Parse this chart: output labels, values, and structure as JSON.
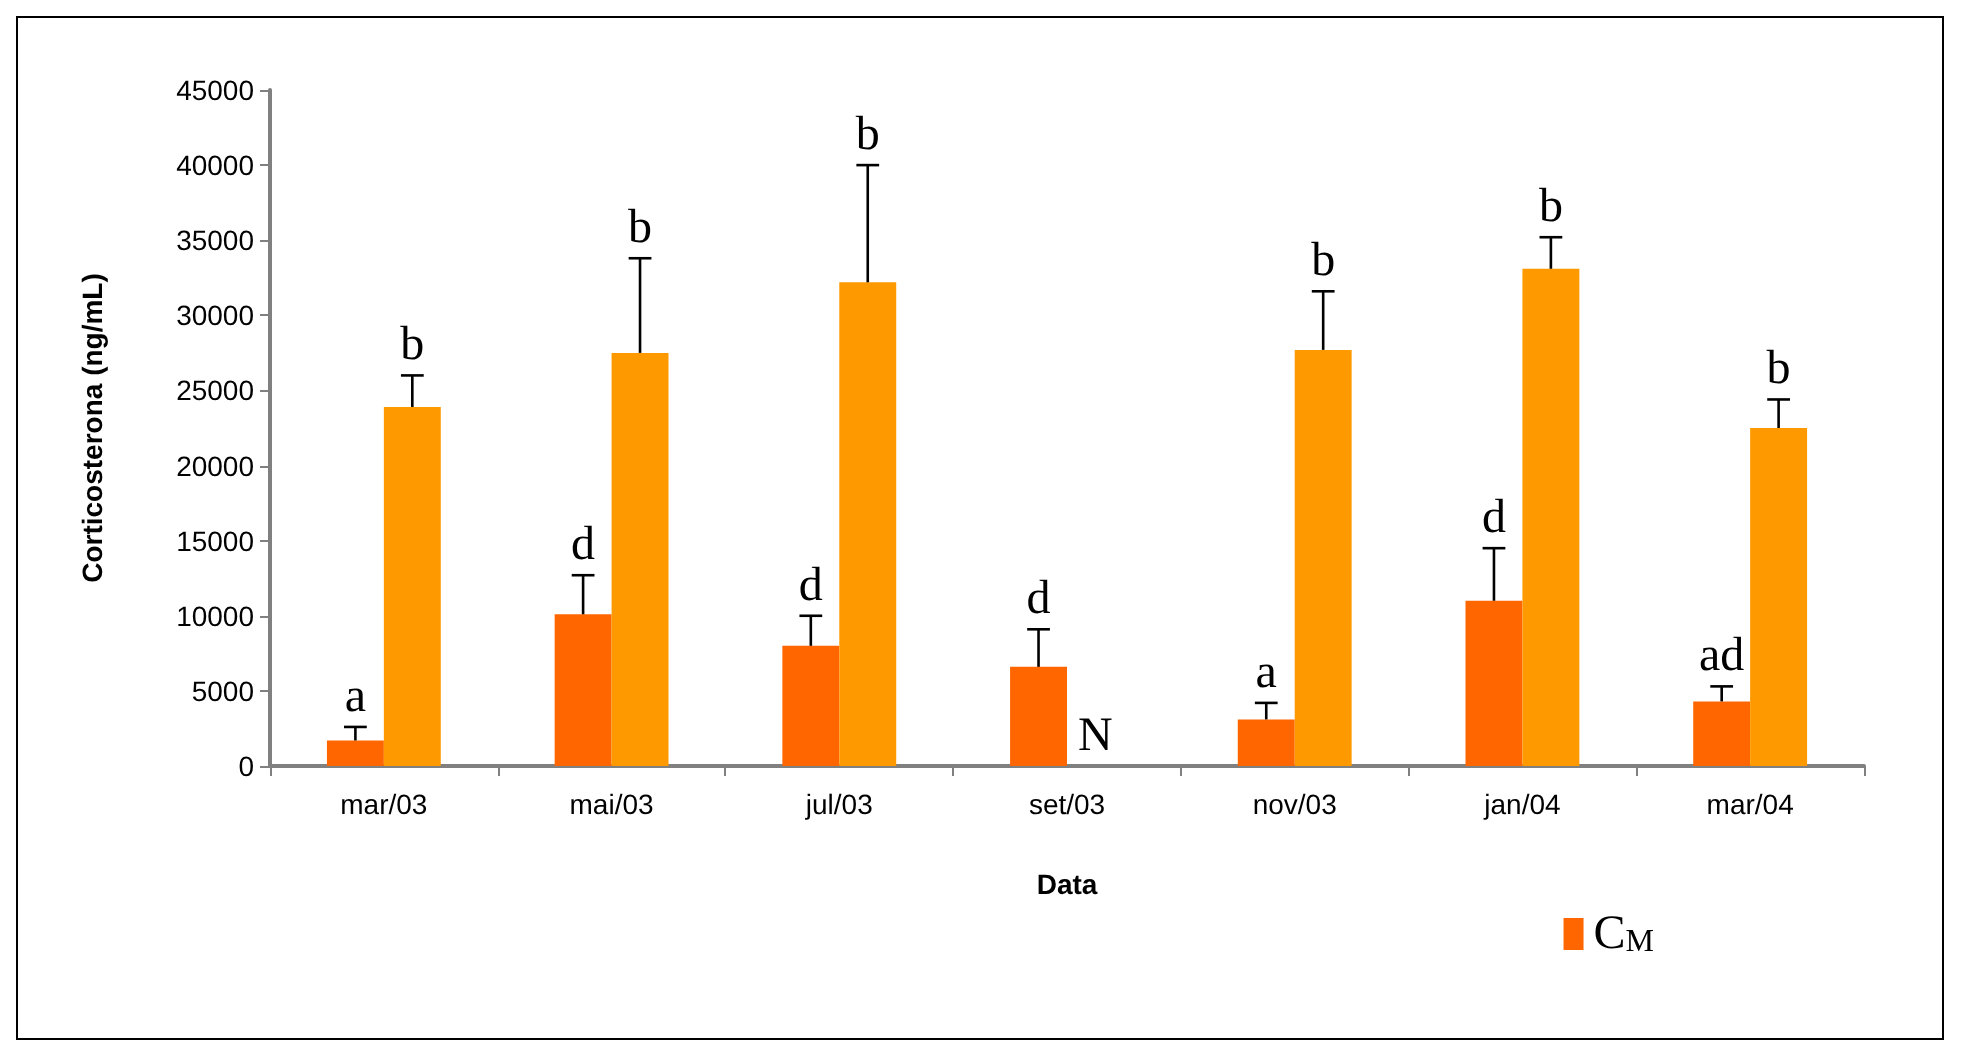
{
  "chart_data": {
    "type": "bar",
    "xlabel": "Data",
    "ylabel": "Corticosterona (ng/mL)",
    "categories": [
      "mar/03",
      "mai/03",
      "jul/03",
      "set/03",
      "nov/03",
      "jan/04",
      "mar/04"
    ],
    "series": [
      {
        "name": "C$_{M}$",
        "color": "#ff6600",
        "values": [
          1700,
          10100,
          8000,
          6600,
          3100,
          11000,
          4300
        ],
        "errors": [
          [
            1700,
            2600
          ],
          [
            10100,
            12700
          ],
          [
            8000,
            10000
          ],
          [
            6600,
            9100
          ],
          [
            3100,
            4200
          ],
          [
            11000,
            14500
          ],
          [
            4300,
            5300
          ]
        ]
      },
      {
        "color": "#ff9900",
        "values": [
          23900,
          27500,
          32200,
          null,
          27700,
          33100,
          22500
        ],
        "errors": [
          [
            23900,
            26000
          ],
          [
            27500,
            33800
          ],
          [
            32200,
            40000
          ],
          null,
          [
            27700,
            31600
          ],
          [
            33100,
            35200
          ],
          [
            22500,
            24400
          ]
        ]
      }
    ],
    "ylim": [
      0,
      45000
    ],
    "yticks": [
      0,
      5000,
      10000,
      15000,
      20000,
      25000,
      30000,
      35000,
      40000,
      45000
    ],
    "annotations": [
      {
        "text": "a",
        "x": "mar/03",
        "y": 1700
      },
      {
        "text": "b",
        "x": "mar/03",
        "y": 23900
      },
      {
        "text": "d",
        "x": "mai/03",
        "y": 10100
      },
      {
        "text": "b",
        "x": "mai/03",
        "y": 27500
      },
      {
        "text": "d",
        "x": "jul/03",
        "y": 8000
      },
      {
        "text": "b",
        "x": "jul/03",
        "y": 32200
      },
      {
        "text": "d",
        "x": "set/03",
        "y": 6600
      },
      {
        "text": "N",
        "x": "set/03",
        "y": 0
      },
      {
        "text": "a",
        "x": "nov/03",
        "y": 3100
      },
      {
        "text": "b",
        "x": "nov/03",
        "y": 27700
      },
      {
        "text": "d",
        "x": "jan/04",
        "y": 11000
      },
      {
        "text": "b",
        "x": "jan/04",
        "y": 33100
      },
      {
        "text": "ad",
        "x": "mar/04",
        "y": 4300
      },
      {
        "text": "b",
        "x": "mar/04",
        "y": 22500
      }
    ],
    "grid": false,
    "legend": "bottom right"
  }
}
